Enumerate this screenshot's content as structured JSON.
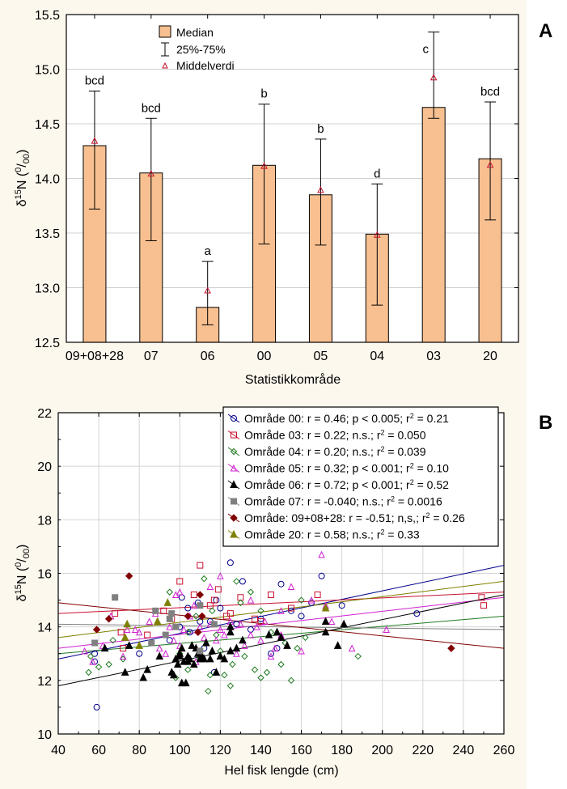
{
  "chart_data": [
    {
      "panel": "A",
      "type": "bar",
      "title": "",
      "xlabel": "Statistikkområde",
      "ylabel": "δ15N (0/00)",
      "ylim": [
        12.5,
        15.5
      ],
      "yticks": [
        "12.5",
        "13.0",
        "13.5",
        "14.0",
        "14.5",
        "15.0",
        "15.5"
      ],
      "ytick_values": [
        12.5,
        13.0,
        13.5,
        14.0,
        14.5,
        15.0,
        15.5
      ],
      "grid": true,
      "legend_position": "top-center",
      "legend": [
        {
          "label": "Median",
          "symbol": "bar"
        },
        {
          "label": "25%-75%",
          "symbol": "whisker"
        },
        {
          "label": "Middelverdi",
          "symbol": "triangle"
        }
      ],
      "categories": [
        "09+08+28",
        "07",
        "06",
        "00",
        "05",
        "04",
        "03",
        "20"
      ],
      "median": [
        14.3,
        14.05,
        12.82,
        14.12,
        13.85,
        13.49,
        14.65,
        14.18
      ],
      "q25": [
        13.72,
        13.43,
        12.66,
        13.4,
        13.39,
        12.84,
        14.55,
        13.62
      ],
      "q75": [
        14.8,
        14.55,
        13.24,
        14.68,
        14.36,
        13.95,
        15.34,
        14.7
      ],
      "mean": [
        14.34,
        14.04,
        12.97,
        14.11,
        13.89,
        13.48,
        14.92,
        14.12
      ],
      "significance_labels": [
        "bcd",
        "bcd",
        "a",
        "b",
        "b",
        "d",
        "c",
        "bcd"
      ],
      "colors": {
        "bar_fill": "#f8c090",
        "mean_marker": "#c8102e",
        "grid": "#d0d0d0"
      }
    },
    {
      "panel": "B",
      "type": "scatter",
      "title": "",
      "xlabel": "Hel fisk lengde (cm)",
      "ylabel": "δ15N (0/00)",
      "xlim": [
        40,
        260
      ],
      "ylim": [
        10,
        22
      ],
      "xticks": [
        "40",
        "60",
        "80",
        "100",
        "120",
        "140",
        "160",
        "180",
        "200",
        "220",
        "240",
        "260"
      ],
      "xtick_values": [
        40,
        60,
        80,
        100,
        120,
        140,
        160,
        180,
        200,
        220,
        240,
        260
      ],
      "yticks": [
        "10",
        "12",
        "14",
        "16",
        "18",
        "20",
        "22"
      ],
      "ytick_values": [
        10,
        12,
        14,
        16,
        18,
        20,
        22
      ],
      "grid": true,
      "legend_position": "top-right",
      "series": [
        {
          "name": "Område 00",
          "legend": "Område 00:  r = 0.46; p < 0.005; r² = 0.21",
          "color": "#00008b",
          "marker": "circle-open",
          "fit": [
            [
              40,
              12.8
            ],
            [
              260,
              16.3
            ]
          ],
          "points": [
            [
              59,
              11.0
            ],
            [
              58,
              12.7
            ],
            [
              58,
              13.0
            ],
            [
              80,
              13.0
            ],
            [
              101,
              15.1
            ],
            [
              104,
              14.7
            ],
            [
              109,
              14.9
            ],
            [
              110,
              14.2
            ],
            [
              115,
              14.2
            ],
            [
              117,
              12.3
            ],
            [
              120,
              14.7
            ],
            [
              128,
              14.1
            ],
            [
              125,
              16.4
            ],
            [
              131,
              15.7
            ],
            [
              140,
              14.3
            ],
            [
              150,
              15.6
            ],
            [
              155,
              14.6
            ],
            [
              160,
              14.4
            ],
            [
              170,
              15.9
            ],
            [
              180,
              14.8
            ],
            [
              217,
              14.5
            ],
            [
              95,
              13.5
            ],
            [
              105,
              13.8
            ],
            [
              112,
              13.2
            ],
            [
              135,
              13.9
            ],
            [
              145,
              13.0
            ],
            [
              165,
              14.9
            ],
            [
              100,
              14.0
            ],
            [
              118,
              15.0
            ],
            [
              148,
              13.2
            ]
          ]
        },
        {
          "name": "Område 03",
          "legend": "Område 03:  r = 0.22; n.s.; r² = 0.050",
          "color": "#c8102e",
          "marker": "square-open",
          "fit": [
            [
              40,
              14.5
            ],
            [
              260,
              15.3
            ]
          ],
          "points": [
            [
              68,
              14.5
            ],
            [
              71,
              13.8
            ],
            [
              72,
              13.2
            ],
            [
              84,
              13.7
            ],
            [
              92,
              14.6
            ],
            [
              100,
              15.7
            ],
            [
              110,
              16.3
            ],
            [
              115,
              14.8
            ],
            [
              117,
              15.0
            ],
            [
              119,
              15.4
            ],
            [
              123,
              14.4
            ],
            [
              125,
              14.5
            ],
            [
              130,
              15.1
            ],
            [
              137,
              14.3
            ],
            [
              140,
              14.2
            ],
            [
              145,
              15.2
            ],
            [
              155,
              14.7
            ],
            [
              168,
              15.2
            ],
            [
              249,
              15.1
            ],
            [
              250,
              14.8
            ],
            [
              96,
              14.3
            ],
            [
              107,
              15.2
            ]
          ]
        },
        {
          "name": "Område 04",
          "legend": "Område 04:  r = 0.20; n.s.; r² = 0.039",
          "color": "#1e7b1e",
          "marker": "diamond-open",
          "fit": [
            [
              40,
              13.0
            ],
            [
              260,
              14.4
            ]
          ],
          "points": [
            [
              55,
              12.3
            ],
            [
              56,
              12.9
            ],
            [
              60,
              12.5
            ],
            [
              65,
              12.6
            ],
            [
              67,
              13.5
            ],
            [
              72,
              12.8
            ],
            [
              95,
              15.3
            ],
            [
              100,
              13.0
            ],
            [
              104,
              12.4
            ],
            [
              108,
              14.4
            ],
            [
              114,
              11.6
            ],
            [
              115,
              12.2
            ],
            [
              118,
              13.7
            ],
            [
              122,
              12.2
            ],
            [
              125,
              11.8
            ],
            [
              126,
              12.6
            ],
            [
              128,
              15.7
            ],
            [
              132,
              12.9
            ],
            [
              135,
              15.3
            ],
            [
              137,
              12.4
            ],
            [
              140,
              12.1
            ],
            [
              143,
              12.3
            ],
            [
              150,
              12.6
            ],
            [
              152,
              13.4
            ],
            [
              158,
              13.2
            ],
            [
              162,
              13.6
            ],
            [
              188,
              12.9
            ],
            [
              110,
              12.8
            ],
            [
              120,
              13.1
            ],
            [
              130,
              14.9
            ],
            [
              145,
              13.8
            ],
            [
              155,
              12.0
            ],
            [
              160,
              15.0
            ],
            [
              112,
              15.8
            ],
            [
              98,
              12.1
            ],
            [
              104,
              13.8
            ],
            [
              116,
              14.6
            ],
            [
              140,
              14.6
            ]
          ]
        },
        {
          "name": "Område 05",
          "legend": "Område 05:  r = 0.32; p < 0.001; r² = 0.10",
          "color": "#d020d0",
          "marker": "triangle-open",
          "fit": [
            [
              40,
              13.2
            ],
            [
              260,
              15.1
            ]
          ],
          "points": [
            [
              53,
              13.1
            ],
            [
              57,
              12.7
            ],
            [
              62,
              13.3
            ],
            [
              66,
              14.4
            ],
            [
              72,
              12.9
            ],
            [
              74,
              13.9
            ],
            [
              78,
              13.9
            ],
            [
              80,
              13.8
            ],
            [
              85,
              14.2
            ],
            [
              90,
              13.2
            ],
            [
              95,
              14.0
            ],
            [
              97,
              13.5
            ],
            [
              98,
              15.2
            ],
            [
              100,
              13.3
            ],
            [
              102,
              13.9
            ],
            [
              105,
              14.4
            ],
            [
              107,
              14.8
            ],
            [
              110,
              14.0
            ],
            [
              112,
              13.6
            ],
            [
              115,
              14.1
            ],
            [
              118,
              13.5
            ],
            [
              120,
              13.9
            ],
            [
              122,
              13.7
            ],
            [
              125,
              14.2
            ],
            [
              128,
              13.0
            ],
            [
              130,
              14.1
            ],
            [
              132,
              13.3
            ],
            [
              135,
              13.7
            ],
            [
              138,
              14.0
            ],
            [
              140,
              13.5
            ],
            [
              142,
              14.2
            ],
            [
              145,
              12.9
            ],
            [
              147,
              13.2
            ],
            [
              150,
              13.7
            ],
            [
              155,
              15.5
            ],
            [
              160,
              13.1
            ],
            [
              165,
              15.0
            ],
            [
              170,
              16.7
            ],
            [
              172,
              14.8
            ],
            [
              175,
              14.2
            ],
            [
              185,
              13.2
            ],
            [
              202,
              13.9
            ],
            [
              120,
              15.9
            ],
            [
              100,
              15.3
            ],
            [
              108,
              12.7
            ],
            [
              93,
              13.0
            ],
            [
              88,
              14.5
            ],
            [
              115,
              15.5
            ],
            [
              135,
              15.0
            ],
            [
              150,
              14.6
            ]
          ]
        },
        {
          "name": "Område 06",
          "legend": "Område 06:  r = 0.72; p < 0.001; r² = 0.52",
          "color": "#000000",
          "marker": "triangle-filled",
          "fit": [
            [
              40,
              11.8
            ],
            [
              260,
              15.2
            ]
          ],
          "points": [
            [
              63,
              13.2
            ],
            [
              73,
              12.3
            ],
            [
              75,
              13.3
            ],
            [
              82,
              12.1
            ],
            [
              84,
              12.4
            ],
            [
              90,
              12.9
            ],
            [
              96,
              12.3
            ],
            [
              97,
              12.2
            ],
            [
              98,
              12.8
            ],
            [
              99,
              12.6
            ],
            [
              100,
              12.9
            ],
            [
              101,
              11.9
            ],
            [
              101,
              13.2
            ],
            [
              102,
              12.7
            ],
            [
              103,
              11.9
            ],
            [
              104,
              12.7
            ],
            [
              105,
              12.8
            ],
            [
              106,
              13.3
            ],
            [
              107,
              12.6
            ],
            [
              108,
              13.2
            ],
            [
              110,
              12.8
            ],
            [
              112,
              12.8
            ],
            [
              113,
              13.4
            ],
            [
              115,
              12.8
            ],
            [
              116,
              13.1
            ],
            [
              118,
              12.3
            ],
            [
              120,
              12.9
            ],
            [
              122,
              12.8
            ],
            [
              125,
              13.1
            ],
            [
              125,
              13.8
            ],
            [
              128,
              13.2
            ],
            [
              131,
              13.5
            ],
            [
              144,
              13.7
            ],
            [
              148,
              13.8
            ],
            [
              150,
              13.6
            ],
            [
              153,
              13.3
            ],
            [
              172,
              13.8
            ],
            [
              172,
              14.2
            ],
            [
              178,
              13.3
            ],
            [
              181,
              14.1
            ],
            [
              125,
              14.0
            ],
            [
              100,
              13.0
            ],
            [
              104,
              12.9
            ],
            [
              109,
              13.0
            ],
            [
              111,
              12.9
            ]
          ]
        },
        {
          "name": "Område 07",
          "legend": "Område 07:  r = -0.040; n.s.; r² = 0.0016",
          "color": "#808080",
          "marker": "square-filled",
          "fit": [
            [
              40,
              14.1
            ],
            [
              260,
              13.9
            ]
          ],
          "points": [
            [
              58,
              13.4
            ],
            [
              68,
              15.1
            ],
            [
              86,
              13.4
            ],
            [
              88,
              14.6
            ],
            [
              95,
              14.3
            ],
            [
              96,
              14.5
            ],
            [
              98,
              14.0
            ],
            [
              110,
              13.1
            ],
            [
              110,
              14.8
            ],
            [
              117,
              14.1
            ],
            [
              93,
              13.7
            ]
          ]
        },
        {
          "name": "Område: 09+08+28",
          "legend": "Område: 09+08+28:  r = -0.51; n,s,; r² = 0.26",
          "color": "#800000",
          "marker": "diamond-filled",
          "fit": [
            [
              40,
              14.9
            ],
            [
              260,
              13.2
            ]
          ],
          "points": [
            [
              59,
              13.9
            ],
            [
              65,
              14.3
            ],
            [
              75,
              15.9
            ],
            [
              104,
              14.4
            ],
            [
              109,
              13.8
            ],
            [
              110,
              15.2
            ],
            [
              111,
              14.4
            ],
            [
              234,
              13.2
            ]
          ]
        },
        {
          "name": "Område 20",
          "legend": "Område 20:  r = 0.58; n.s.; r² = 0.33",
          "color": "#7f7f00",
          "marker": "triangle-filled",
          "fit": [
            [
              40,
              13.6
            ],
            [
              260,
              15.7
            ]
          ],
          "points": [
            [
              74,
              14.1
            ],
            [
              80,
              13.3
            ],
            [
              89,
              14.2
            ],
            [
              94,
              14.9
            ],
            [
              73,
              13.6
            ],
            [
              172,
              14.7
            ]
          ]
        }
      ]
    }
  ],
  "panel_labels": {
    "a": "A",
    "b": "B"
  },
  "legend_a": {
    "median": "Median",
    "whisker": "25%-75%",
    "mean": "Middelverdi"
  }
}
